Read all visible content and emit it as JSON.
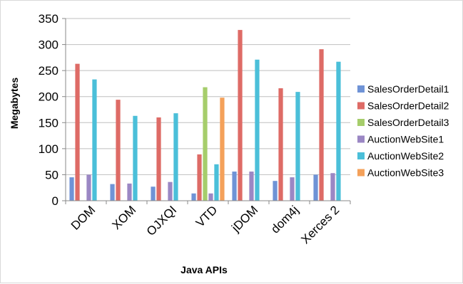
{
  "chart_data": {
    "type": "bar",
    "title": "",
    "xlabel": "Java APIs",
    "ylabel": "Megabytes",
    "ylim": [
      0,
      350
    ],
    "yticks": [
      0,
      50,
      100,
      150,
      200,
      250,
      300,
      350
    ],
    "grid": true,
    "legend_position": "right",
    "categories": [
      "DOM",
      "XOM",
      "OJXQI",
      "VTD",
      "jDOM",
      "dom4j",
      "Xerces 2"
    ],
    "series": [
      {
        "name": "SalesOrderDetail1",
        "color": "#6f93d6",
        "values": [
          45,
          32,
          27,
          14,
          56,
          38,
          50
        ]
      },
      {
        "name": "SalesOrderDetail2",
        "color": "#de6b66",
        "values": [
          263,
          194,
          160,
          89,
          328,
          216,
          291
        ]
      },
      {
        "name": "SalesOrderDetail3",
        "color": "#a6cd6b",
        "values": [
          null,
          null,
          null,
          218,
          null,
          null,
          null
        ]
      },
      {
        "name": "AuctionWebSite1",
        "color": "#9b87c4",
        "values": [
          50,
          33,
          36,
          14,
          56,
          45,
          53
        ]
      },
      {
        "name": "AuctionWebSite2",
        "color": "#4bbfd9",
        "values": [
          233,
          163,
          168,
          70,
          271,
          209,
          267
        ]
      },
      {
        "name": "AuctionWebSite3",
        "color": "#f4a15a",
        "values": [
          null,
          null,
          null,
          198,
          null,
          null,
          null
        ]
      }
    ]
  }
}
